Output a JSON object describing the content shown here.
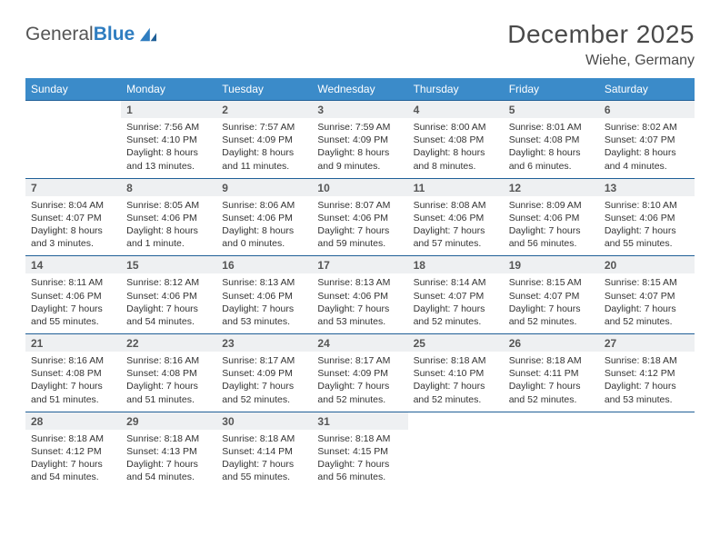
{
  "brand": {
    "name_a": "General",
    "name_b": "Blue"
  },
  "title": "December 2025",
  "location": "Wiehe, Germany",
  "colors": {
    "header_bg": "#3b8bc9",
    "row_border": "#1f5f97",
    "daynum_bg": "#eef0f2",
    "text": "#333333",
    "title": "#4a4a4a"
  },
  "weekdays": [
    "Sunday",
    "Monday",
    "Tuesday",
    "Wednesday",
    "Thursday",
    "Friday",
    "Saturday"
  ],
  "weeks": [
    [
      null,
      {
        "d": "1",
        "sr": "7:56 AM",
        "ss": "4:10 PM",
        "dl": "8 hours and 13 minutes."
      },
      {
        "d": "2",
        "sr": "7:57 AM",
        "ss": "4:09 PM",
        "dl": "8 hours and 11 minutes."
      },
      {
        "d": "3",
        "sr": "7:59 AM",
        "ss": "4:09 PM",
        "dl": "8 hours and 9 minutes."
      },
      {
        "d": "4",
        "sr": "8:00 AM",
        "ss": "4:08 PM",
        "dl": "8 hours and 8 minutes."
      },
      {
        "d": "5",
        "sr": "8:01 AM",
        "ss": "4:08 PM",
        "dl": "8 hours and 6 minutes."
      },
      {
        "d": "6",
        "sr": "8:02 AM",
        "ss": "4:07 PM",
        "dl": "8 hours and 4 minutes."
      }
    ],
    [
      {
        "d": "7",
        "sr": "8:04 AM",
        "ss": "4:07 PM",
        "dl": "8 hours and 3 minutes."
      },
      {
        "d": "8",
        "sr": "8:05 AM",
        "ss": "4:06 PM",
        "dl": "8 hours and 1 minute."
      },
      {
        "d": "9",
        "sr": "8:06 AM",
        "ss": "4:06 PM",
        "dl": "8 hours and 0 minutes."
      },
      {
        "d": "10",
        "sr": "8:07 AM",
        "ss": "4:06 PM",
        "dl": "7 hours and 59 minutes."
      },
      {
        "d": "11",
        "sr": "8:08 AM",
        "ss": "4:06 PM",
        "dl": "7 hours and 57 minutes."
      },
      {
        "d": "12",
        "sr": "8:09 AM",
        "ss": "4:06 PM",
        "dl": "7 hours and 56 minutes."
      },
      {
        "d": "13",
        "sr": "8:10 AM",
        "ss": "4:06 PM",
        "dl": "7 hours and 55 minutes."
      }
    ],
    [
      {
        "d": "14",
        "sr": "8:11 AM",
        "ss": "4:06 PM",
        "dl": "7 hours and 55 minutes."
      },
      {
        "d": "15",
        "sr": "8:12 AM",
        "ss": "4:06 PM",
        "dl": "7 hours and 54 minutes."
      },
      {
        "d": "16",
        "sr": "8:13 AM",
        "ss": "4:06 PM",
        "dl": "7 hours and 53 minutes."
      },
      {
        "d": "17",
        "sr": "8:13 AM",
        "ss": "4:06 PM",
        "dl": "7 hours and 53 minutes."
      },
      {
        "d": "18",
        "sr": "8:14 AM",
        "ss": "4:07 PM",
        "dl": "7 hours and 52 minutes."
      },
      {
        "d": "19",
        "sr": "8:15 AM",
        "ss": "4:07 PM",
        "dl": "7 hours and 52 minutes."
      },
      {
        "d": "20",
        "sr": "8:15 AM",
        "ss": "4:07 PM",
        "dl": "7 hours and 52 minutes."
      }
    ],
    [
      {
        "d": "21",
        "sr": "8:16 AM",
        "ss": "4:08 PM",
        "dl": "7 hours and 51 minutes."
      },
      {
        "d": "22",
        "sr": "8:16 AM",
        "ss": "4:08 PM",
        "dl": "7 hours and 51 minutes."
      },
      {
        "d": "23",
        "sr": "8:17 AM",
        "ss": "4:09 PM",
        "dl": "7 hours and 52 minutes."
      },
      {
        "d": "24",
        "sr": "8:17 AM",
        "ss": "4:09 PM",
        "dl": "7 hours and 52 minutes."
      },
      {
        "d": "25",
        "sr": "8:18 AM",
        "ss": "4:10 PM",
        "dl": "7 hours and 52 minutes."
      },
      {
        "d": "26",
        "sr": "8:18 AM",
        "ss": "4:11 PM",
        "dl": "7 hours and 52 minutes."
      },
      {
        "d": "27",
        "sr": "8:18 AM",
        "ss": "4:12 PM",
        "dl": "7 hours and 53 minutes."
      }
    ],
    [
      {
        "d": "28",
        "sr": "8:18 AM",
        "ss": "4:12 PM",
        "dl": "7 hours and 54 minutes."
      },
      {
        "d": "29",
        "sr": "8:18 AM",
        "ss": "4:13 PM",
        "dl": "7 hours and 54 minutes."
      },
      {
        "d": "30",
        "sr": "8:18 AM",
        "ss": "4:14 PM",
        "dl": "7 hours and 55 minutes."
      },
      {
        "d": "31",
        "sr": "8:18 AM",
        "ss": "4:15 PM",
        "dl": "7 hours and 56 minutes."
      },
      null,
      null,
      null
    ]
  ],
  "labels": {
    "sunrise": "Sunrise:",
    "sunset": "Sunset:",
    "daylight": "Daylight:"
  }
}
